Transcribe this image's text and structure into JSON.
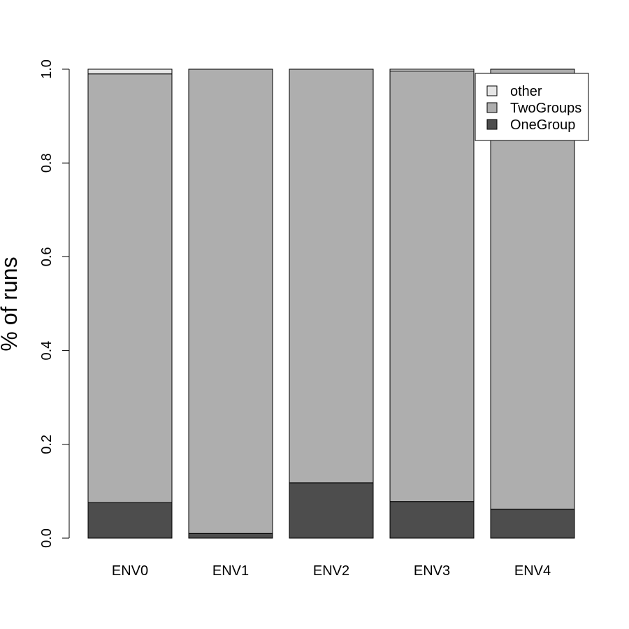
{
  "chart_data": {
    "type": "bar",
    "stacked": true,
    "title": "",
    "xlabel": "",
    "ylabel": "% of runs",
    "ylim": [
      0,
      1
    ],
    "yticks": [
      "0.0",
      "0.2",
      "0.4",
      "0.6",
      "0.8",
      "1.0"
    ],
    "categories": [
      "ENV0",
      "ENV1",
      "ENV2",
      "ENV3",
      "ENV4"
    ],
    "series": [
      {
        "name": "OneGroup",
        "color": "#4d4d4d",
        "values": [
          0.076,
          0.01,
          0.118,
          0.078,
          0.062
        ]
      },
      {
        "name": "TwoGroups",
        "color": "#aeaeae",
        "values": [
          0.914,
          0.99,
          0.882,
          0.918,
          0.938
        ]
      },
      {
        "name": "other",
        "color": "#e6e6e6",
        "values": [
          0.01,
          0.0,
          0.0,
          0.004,
          0.0
        ]
      }
    ],
    "legend": {
      "placement": "top-right",
      "entries": [
        "other",
        "TwoGroups",
        "OneGroup"
      ]
    },
    "grid": false
  }
}
